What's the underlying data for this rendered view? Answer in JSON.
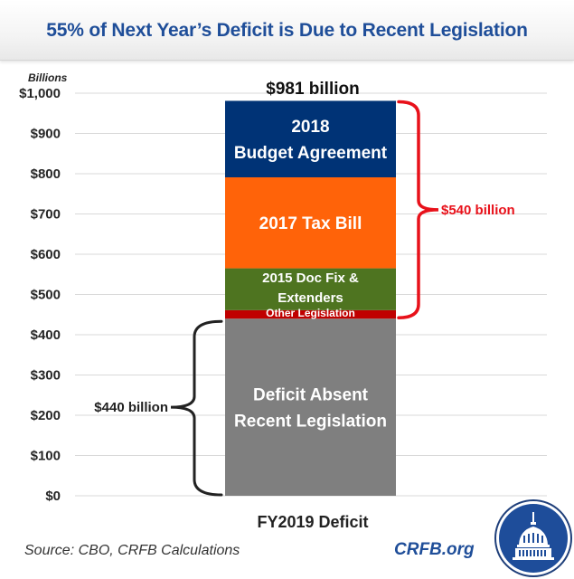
{
  "header": {
    "title": "55% of Next Year’s Deficit is Due to Recent Legislation"
  },
  "footer": {
    "source": "Source: CBO, CRFB Calculations",
    "site": "CRFB.org"
  },
  "logo": {
    "icon": "capitol-dome-seal-icon"
  },
  "colors": {
    "title": "#1F4E99",
    "budget_agreement": "#003376",
    "tax_bill": "#FF6309",
    "doc_fix": "#4E7420",
    "other_legislation": "#C00000",
    "deficit_absent": "#7F7F7F",
    "legislation_brace": "#E8111A",
    "baseline_brace": "#222222"
  },
  "chart_data": {
    "type": "bar",
    "stacked": true,
    "title": "55% of Next Year’s Deficit is Due to Recent Legislation",
    "ylabel": "Billions",
    "xlabel": "",
    "categories": [
      "FY2019 Deficit"
    ],
    "ylim": [
      0,
      1000
    ],
    "yticks": [
      0,
      100,
      200,
      300,
      400,
      500,
      600,
      700,
      800,
      900,
      1000
    ],
    "ytick_labels": [
      "$0",
      "$100",
      "$200",
      "$300",
      "$400",
      "$500",
      "$600",
      "$700",
      "$800",
      "$900",
      "$1,000"
    ],
    "grid": true,
    "series": [
      {
        "name": "Deficit Absent Recent Legislation",
        "label_lines": [
          "Deficit Absent",
          "Recent Legislation"
        ],
        "values": [
          440
        ],
        "color_key": "deficit_absent"
      },
      {
        "name": "Other Legislation",
        "label_lines": [
          "Other  Legislation"
        ],
        "values": [
          21
        ],
        "color_key": "other_legislation"
      },
      {
        "name": "2015 Doc Fix & Extenders",
        "label_lines": [
          "2015 Doc Fix &",
          "Extenders"
        ],
        "values": [
          104
        ],
        "color_key": "doc_fix"
      },
      {
        "name": "2017 Tax Bill",
        "label_lines": [
          "2017 Tax Bill"
        ],
        "values": [
          226
        ],
        "color_key": "tax_bill"
      },
      {
        "name": "2018 Budget Agreement",
        "label_lines": [
          "2018",
          "Budget Agreement"
        ],
        "values": [
          190
        ],
        "color_key": "budget_agreement"
      }
    ],
    "total_label": "$981 billion",
    "total": 981,
    "annotations": [
      {
        "text": "$540 billion",
        "from": 440,
        "to": 981,
        "side": "right",
        "color_key": "legislation_brace"
      },
      {
        "text": "$440 billion",
        "from": 0,
        "to": 440,
        "side": "left",
        "color_key": "baseline_brace"
      }
    ]
  }
}
